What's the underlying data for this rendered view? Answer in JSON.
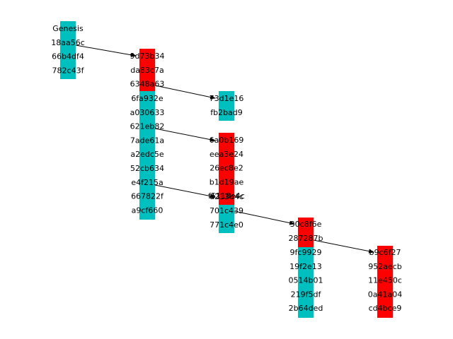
{
  "colors": {
    "cyan": "#00bfbf",
    "red": "#ff0000",
    "arrow": "#000000"
  },
  "blocks": [
    {
      "id": "b0",
      "color": "cyan",
      "labels": [
        "Genesis",
        "18aa56c",
        "66b4df4",
        "782c43f"
      ]
    },
    {
      "id": "b1",
      "color": "red",
      "labels": [
        "9d73b34",
        "da83c7a",
        "6348a63"
      ]
    },
    {
      "id": "b2",
      "color": "cyan",
      "labels": [
        "6fa932e",
        "a030633",
        "621eb82",
        "7ade61a",
        "a2edc5e",
        "52cb634",
        "e4f215a",
        "667822f",
        "a9cf660"
      ]
    },
    {
      "id": "b3",
      "color": "cyan",
      "labels": [
        "73d1e16",
        "fb2bad9"
      ]
    },
    {
      "id": "b4",
      "color": "red",
      "labels": [
        "6a0b169",
        "eea3e24",
        "26ec8e2",
        "b1d19ae",
        "f5118e4c"
      ]
    },
    {
      "id": "b5",
      "color": "red",
      "labels": [
        "d213b4c"
      ]
    },
    {
      "id": "b6",
      "color": "cyan",
      "labels": [
        "701c439",
        "771c4e0"
      ]
    },
    {
      "id": "b7",
      "color": "red",
      "labels": [
        "30c8f6e",
        "287287b"
      ]
    },
    {
      "id": "b8",
      "color": "cyan",
      "labels": [
        "9fc9929",
        "19f2e13",
        "0514b01",
        "219f5df",
        "2b64ded"
      ]
    },
    {
      "id": "b9",
      "color": "red",
      "labels": [
        "b9c6f27",
        "952aecb",
        "11e450c",
        "0a41a04",
        "cd4bce9"
      ]
    }
  ],
  "links": [
    {
      "from": "b0",
      "to": "b1"
    },
    {
      "from": "b1",
      "to": "b3"
    },
    {
      "from": "b2",
      "to": "b4"
    },
    {
      "from": "b2",
      "to": "b5"
    },
    {
      "from": "b6",
      "to": "b7"
    },
    {
      "from": "b7",
      "to": "b9"
    }
  ]
}
